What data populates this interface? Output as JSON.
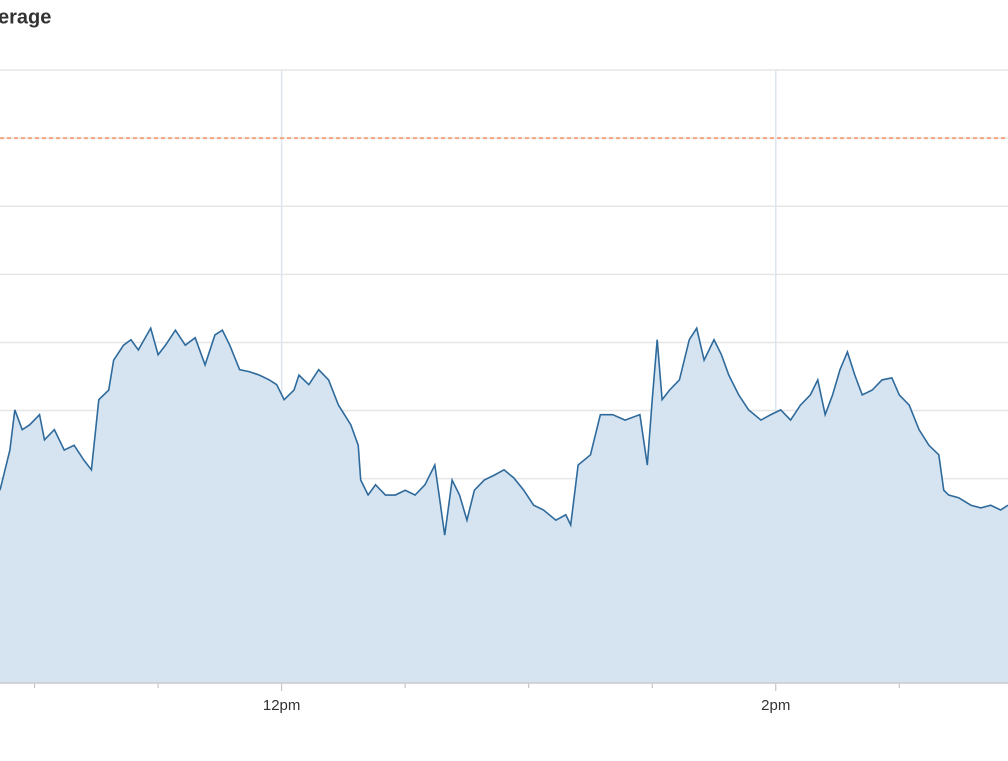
{
  "chart_data": {
    "type": "line",
    "title": "erage",
    "x": [
      10.86,
      10.9,
      10.92,
      10.95,
      10.98,
      11.02,
      11.04,
      11.08,
      11.12,
      11.16,
      11.2,
      11.23,
      11.26,
      11.3,
      11.32,
      11.36,
      11.39,
      11.42,
      11.47,
      11.5,
      11.53,
      11.57,
      11.61,
      11.65,
      11.69,
      11.73,
      11.76,
      11.79,
      11.83,
      11.87,
      11.91,
      11.95,
      11.98,
      12.01,
      12.05,
      12.07,
      12.11,
      12.15,
      12.19,
      12.23,
      12.28,
      12.31,
      12.32,
      12.35,
      12.38,
      12.42,
      12.46,
      12.5,
      12.54,
      12.58,
      12.62,
      12.64,
      12.66,
      12.69,
      12.72,
      12.75,
      12.78,
      12.82,
      12.86,
      12.9,
      12.94,
      12.98,
      13.02,
      13.06,
      13.11,
      13.15,
      13.17,
      13.2,
      13.25,
      13.29,
      13.34,
      13.39,
      13.45,
      13.48,
      13.5,
      13.52,
      13.54,
      13.57,
      13.61,
      13.65,
      13.68,
      13.71,
      13.75,
      13.78,
      13.81,
      13.85,
      13.89,
      13.94,
      13.98,
      14.02,
      14.06,
      14.1,
      14.14,
      14.17,
      14.2,
      14.23,
      14.26,
      14.29,
      14.32,
      14.35,
      14.39,
      14.43,
      14.47,
      14.5,
      14.54,
      14.58,
      14.62,
      14.66,
      14.68,
      14.7,
      14.74,
      14.79,
      14.83,
      14.87,
      14.91,
      14.94
    ],
    "values": [
      2.83,
      3.42,
      4.01,
      3.72,
      3.79,
      3.94,
      3.57,
      3.72,
      3.42,
      3.49,
      3.27,
      3.13,
      4.16,
      4.3,
      4.74,
      4.96,
      5.04,
      4.89,
      5.21,
      4.82,
      4.96,
      5.18,
      4.96,
      5.07,
      4.67,
      5.11,
      5.18,
      4.96,
      4.6,
      4.57,
      4.52,
      4.45,
      4.38,
      4.16,
      4.3,
      4.52,
      4.38,
      4.6,
      4.45,
      4.08,
      3.79,
      3.49,
      2.98,
      2.76,
      2.91,
      2.76,
      2.76,
      2.83,
      2.76,
      2.91,
      3.2,
      2.69,
      2.17,
      2.98,
      2.76,
      2.39,
      2.83,
      2.98,
      3.05,
      3.13,
      3.01,
      2.83,
      2.61,
      2.54,
      2.39,
      2.47,
      2.32,
      3.2,
      3.35,
      3.94,
      3.94,
      3.86,
      3.94,
      3.2,
      4.16,
      5.04,
      4.16,
      4.3,
      4.45,
      5.04,
      5.21,
      4.74,
      5.04,
      4.82,
      4.52,
      4.23,
      4.01,
      3.86,
      3.94,
      4.01,
      3.86,
      4.08,
      4.23,
      4.45,
      3.94,
      4.23,
      4.6,
      4.86,
      4.52,
      4.23,
      4.3,
      4.45,
      4.48,
      4.23,
      4.08,
      3.72,
      3.49,
      3.35,
      2.83,
      2.76,
      2.72,
      2.61,
      2.57,
      2.61,
      2.54,
      2.61
    ],
    "color": "#2f6a9c",
    "fill_color": "#d5e4f0",
    "xlim": [
      10.86,
      14.94
    ],
    "xticks": [
      {
        "value": 12,
        "label": "12pm"
      },
      {
        "value": 14,
        "label": "2pm"
      }
    ],
    "xminorticks": [
      11,
      11.5,
      12.5,
      13,
      13.5,
      14.5
    ],
    "ylim": [
      0,
      9
    ],
    "yticks": [
      0,
      1,
      2,
      3,
      4,
      5,
      6,
      7,
      8,
      9
    ],
    "grid": true,
    "reference_line": {
      "value": 8,
      "color": "#f4a582"
    }
  }
}
